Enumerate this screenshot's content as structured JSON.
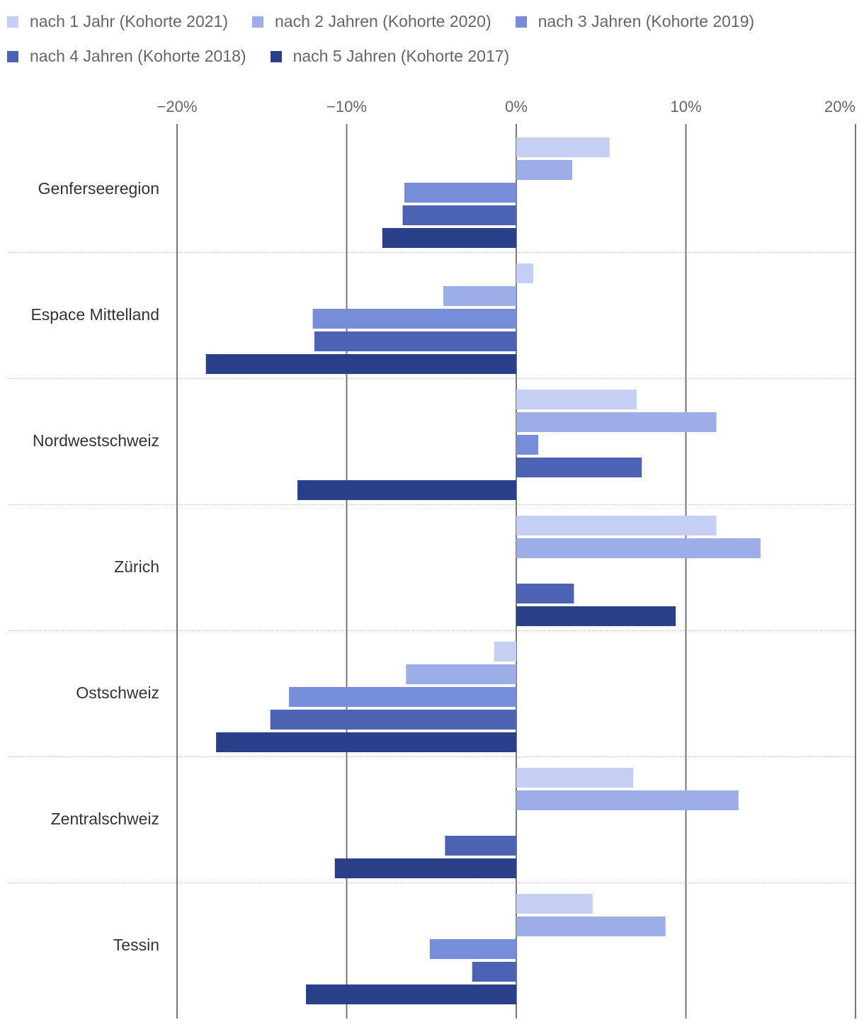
{
  "chart_data": {
    "type": "bar",
    "orientation": "horizontal",
    "categories": [
      "Genferseeregion",
      "Espace Mittelland",
      "Nordwestschweiz",
      "Zürich",
      "Ostschweiz",
      "Zentralschweiz",
      "Tessin"
    ],
    "series": [
      {
        "name": "nach 1 Jahr (Kohorte 2021)",
        "color": "#c5cef3",
        "values": [
          5.5,
          1.0,
          7.1,
          11.8,
          -1.3,
          6.9,
          4.5
        ]
      },
      {
        "name": "nach 2 Jahren (Kohorte 2020)",
        "color": "#9dade8",
        "values": [
          3.3,
          -4.3,
          11.8,
          14.4,
          -6.5,
          13.1,
          8.8
        ]
      },
      {
        "name": "nach 3 Jahren (Kohorte 2019)",
        "color": "#768dd9",
        "values": [
          -6.6,
          -12.0,
          1.3,
          0,
          -13.4,
          0,
          -5.1
        ]
      },
      {
        "name": "nach 4 Jahren (Kohorte 2018)",
        "color": "#4c63b3",
        "values": [
          -6.7,
          -11.9,
          7.4,
          3.4,
          -14.5,
          -4.2,
          -2.6
        ]
      },
      {
        "name": "nach 5 Jahren (Kohorte 2017)",
        "color": "#2a3f8a",
        "values": [
          -7.9,
          -18.3,
          -12.9,
          9.4,
          -17.7,
          -10.7,
          -12.4
        ]
      }
    ],
    "x_ticks": [
      "−20%",
      "−10%",
      "0%",
      "10%",
      "20%"
    ],
    "xlim": [
      -20,
      20
    ],
    "legend_position": "top",
    "grid": true
  }
}
